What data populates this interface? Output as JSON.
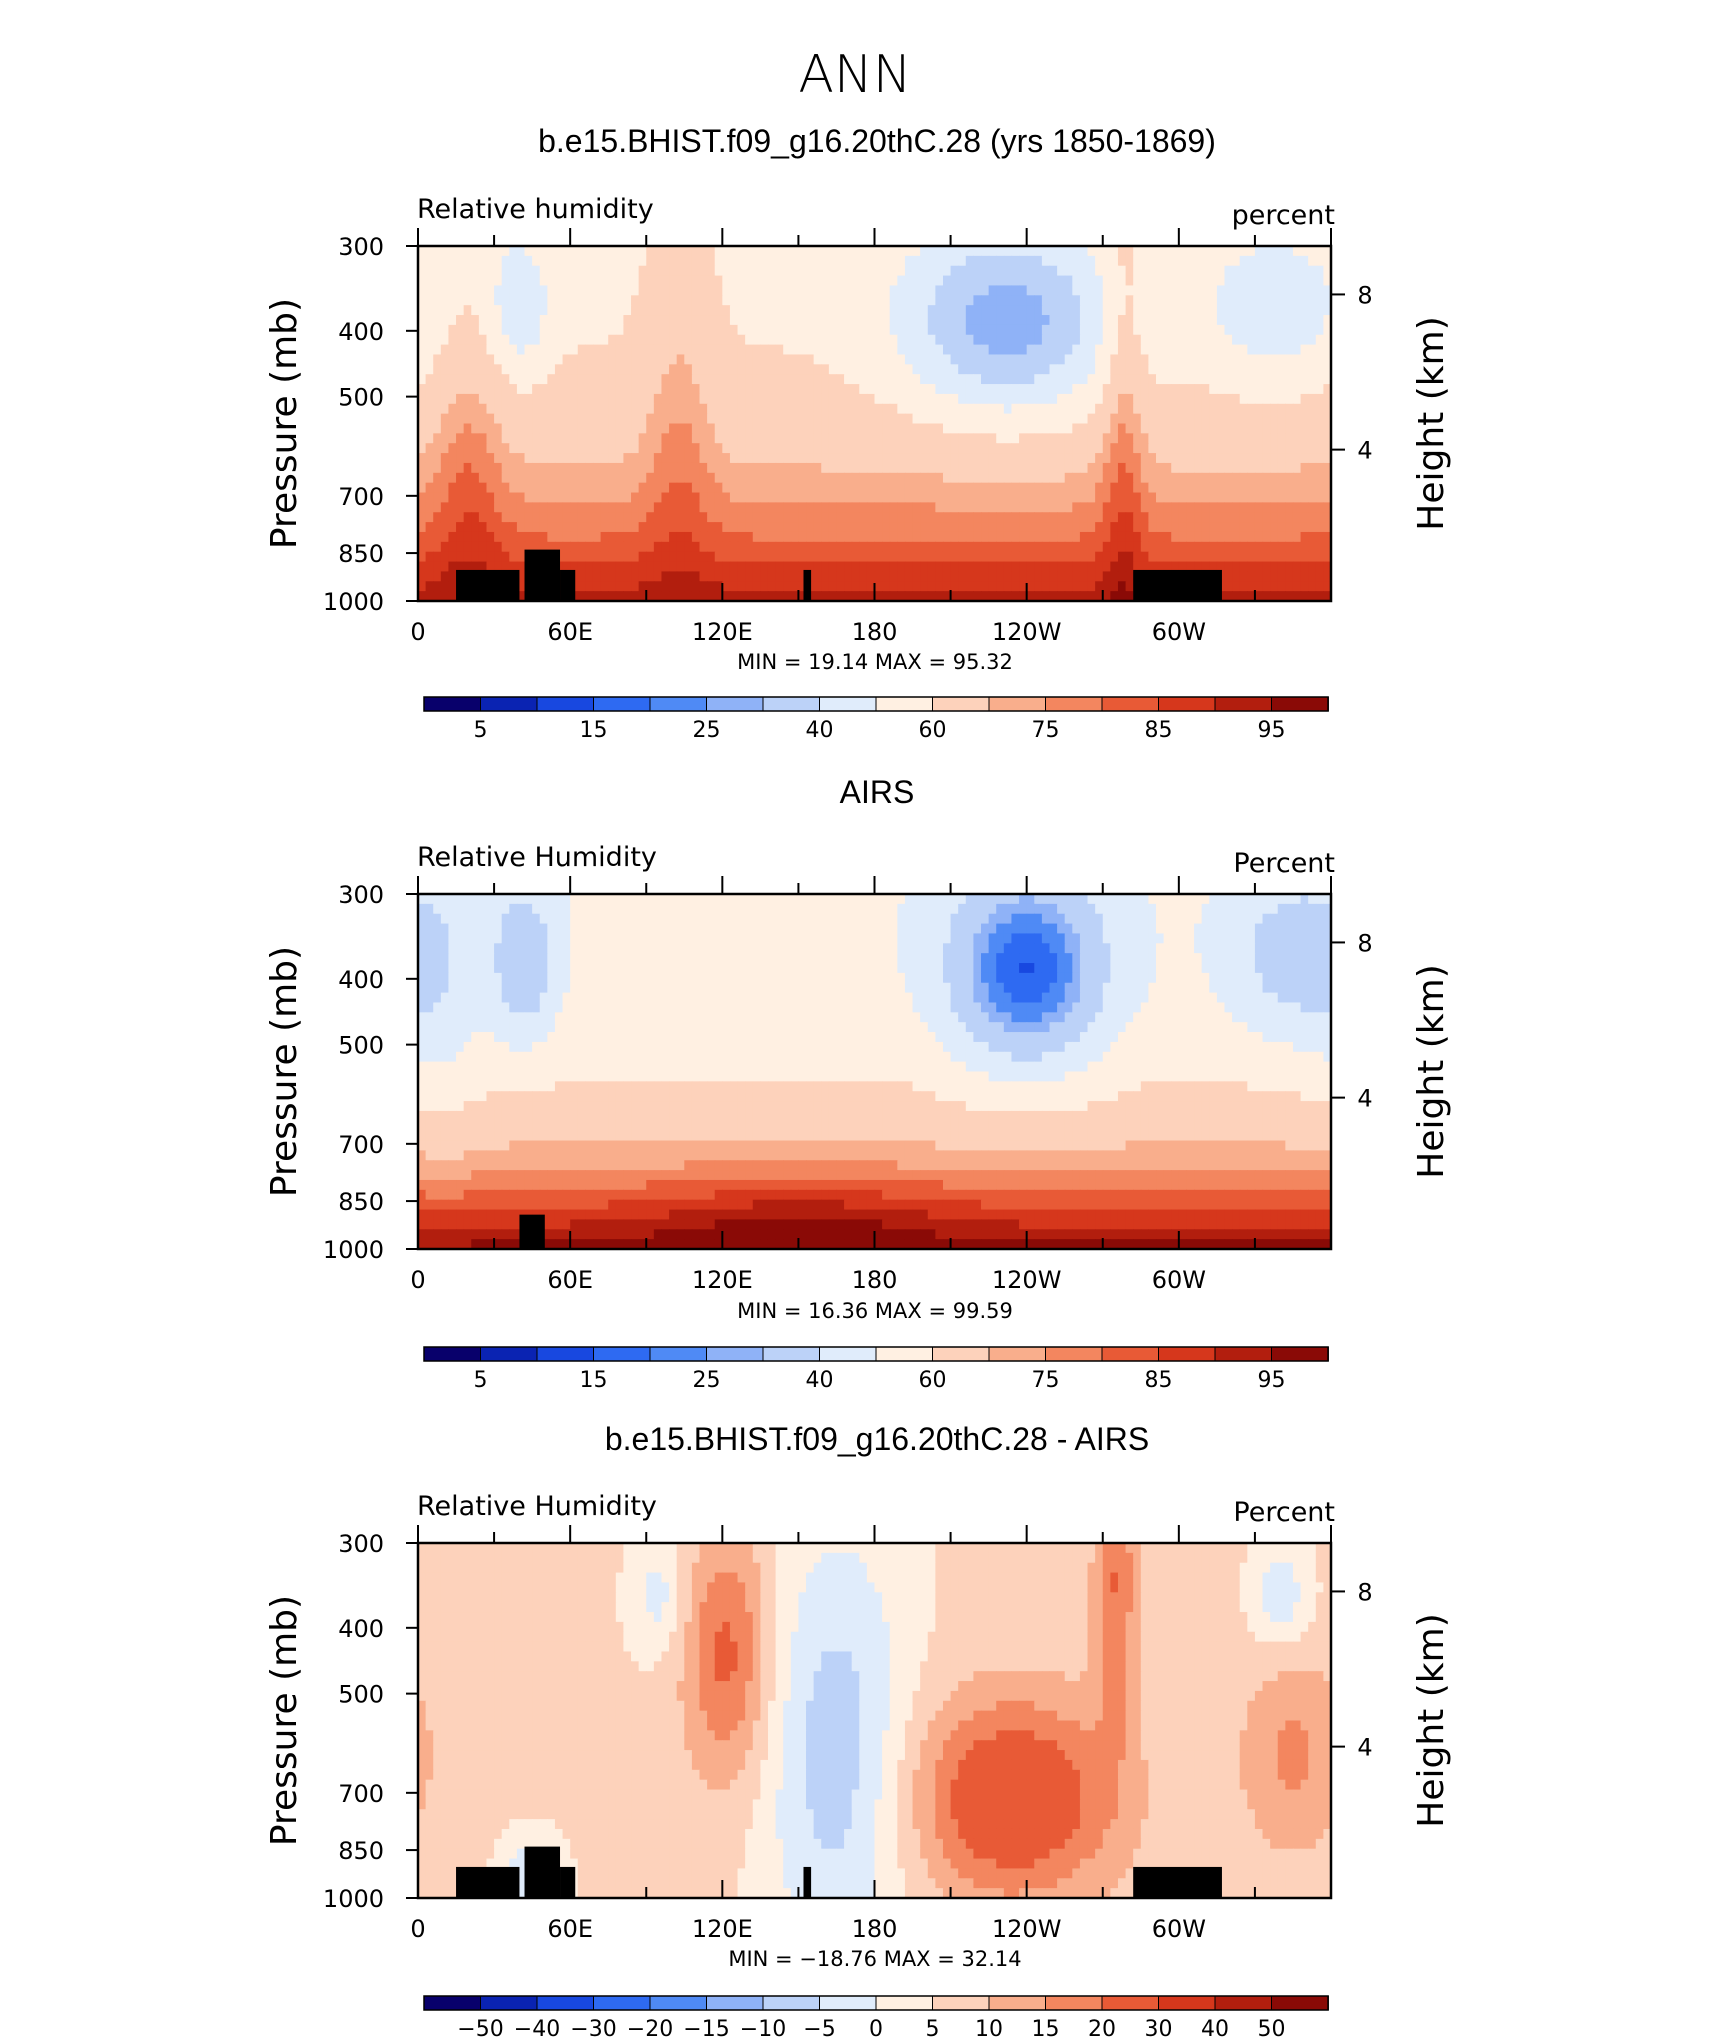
{
  "figure": {
    "season": "ANN",
    "colors": {
      "abs_levels": [
        "#08006b",
        "#0a23b2",
        "#1848e0",
        "#2e6af2",
        "#4f8af5",
        "#8fb2f7",
        "#bcd2f8",
        "#e0ecfb",
        "#fff0e2",
        "#fdd2bb",
        "#f9ae8c",
        "#f3865f",
        "#e85a36",
        "#d6371c",
        "#b21e0e",
        "#8a0a06"
      ],
      "diff_levels": [
        "#08006b",
        "#0a23b2",
        "#1848e0",
        "#2e6af2",
        "#4f8af5",
        "#8fb2f7",
        "#bcd2f8",
        "#e0ecfb",
        "#fff0e2",
        "#fdd2bb",
        "#f9ae8c",
        "#f3865f",
        "#e85a36",
        "#d6371c",
        "#b21e0e",
        "#8a0a06"
      ],
      "land_mask": "#000000"
    }
  },
  "chart_data": [
    {
      "type": "heatmap",
      "title": "b.e15.BHIST.f09_g16.20thC.28 (yrs 1850-1869)",
      "variable": "Relative  humidity",
      "units": "percent",
      "ylabel": "Pressure  (mb)",
      "y2label": "Height  (km)",
      "stats": "MIN =   19.14   MAX =   95.32",
      "min": 19.14,
      "max": 95.32,
      "xticks": [
        "0",
        "60E",
        "120E",
        "180",
        "120W",
        "60W"
      ],
      "yticks": [
        "300",
        "400",
        "500",
        "700",
        "850",
        "1000"
      ],
      "y2ticks": [
        "8",
        "4"
      ],
      "colorbar_labels": [
        "5",
        "15",
        "25",
        "40",
        "60",
        "75",
        "85",
        "95"
      ],
      "field": "model"
    },
    {
      "type": "heatmap",
      "title": "AIRS",
      "variable": "Relative  Humidity",
      "units": "Percent",
      "ylabel": "Pressure  (mb)",
      "y2label": "Height  (km)",
      "stats": "MIN =   16.36   MAX =   99.59",
      "min": 16.36,
      "max": 99.59,
      "xticks": [
        "0",
        "60E",
        "120E",
        "180",
        "120W",
        "60W"
      ],
      "yticks": [
        "300",
        "400",
        "500",
        "700",
        "850",
        "1000"
      ],
      "y2ticks": [
        "8",
        "4"
      ],
      "colorbar_labels": [
        "5",
        "15",
        "25",
        "40",
        "60",
        "75",
        "85",
        "95"
      ],
      "field": "obs"
    },
    {
      "type": "heatmap",
      "title": "b.e15.BHIST.f09_g16.20thC.28 - AIRS",
      "variable": "Relative  Humidity",
      "units": "Percent",
      "ylabel": "Pressure  (mb)",
      "y2label": "Height  (km)",
      "stats": "MIN = −18.76   MAX =   32.14",
      "min": -18.76,
      "max": 32.14,
      "xticks": [
        "0",
        "60E",
        "120E",
        "180",
        "120W",
        "60W"
      ],
      "yticks": [
        "300",
        "400",
        "500",
        "700",
        "850",
        "1000"
      ],
      "y2ticks": [
        "8",
        "4"
      ],
      "colorbar_labels": [
        "−50",
        "−40",
        "−30",
        "−20",
        "−15",
        "−10",
        "−5",
        "0",
        "5",
        "10",
        "15",
        "20",
        "30",
        "40",
        "50"
      ],
      "field": "diff"
    }
  ]
}
